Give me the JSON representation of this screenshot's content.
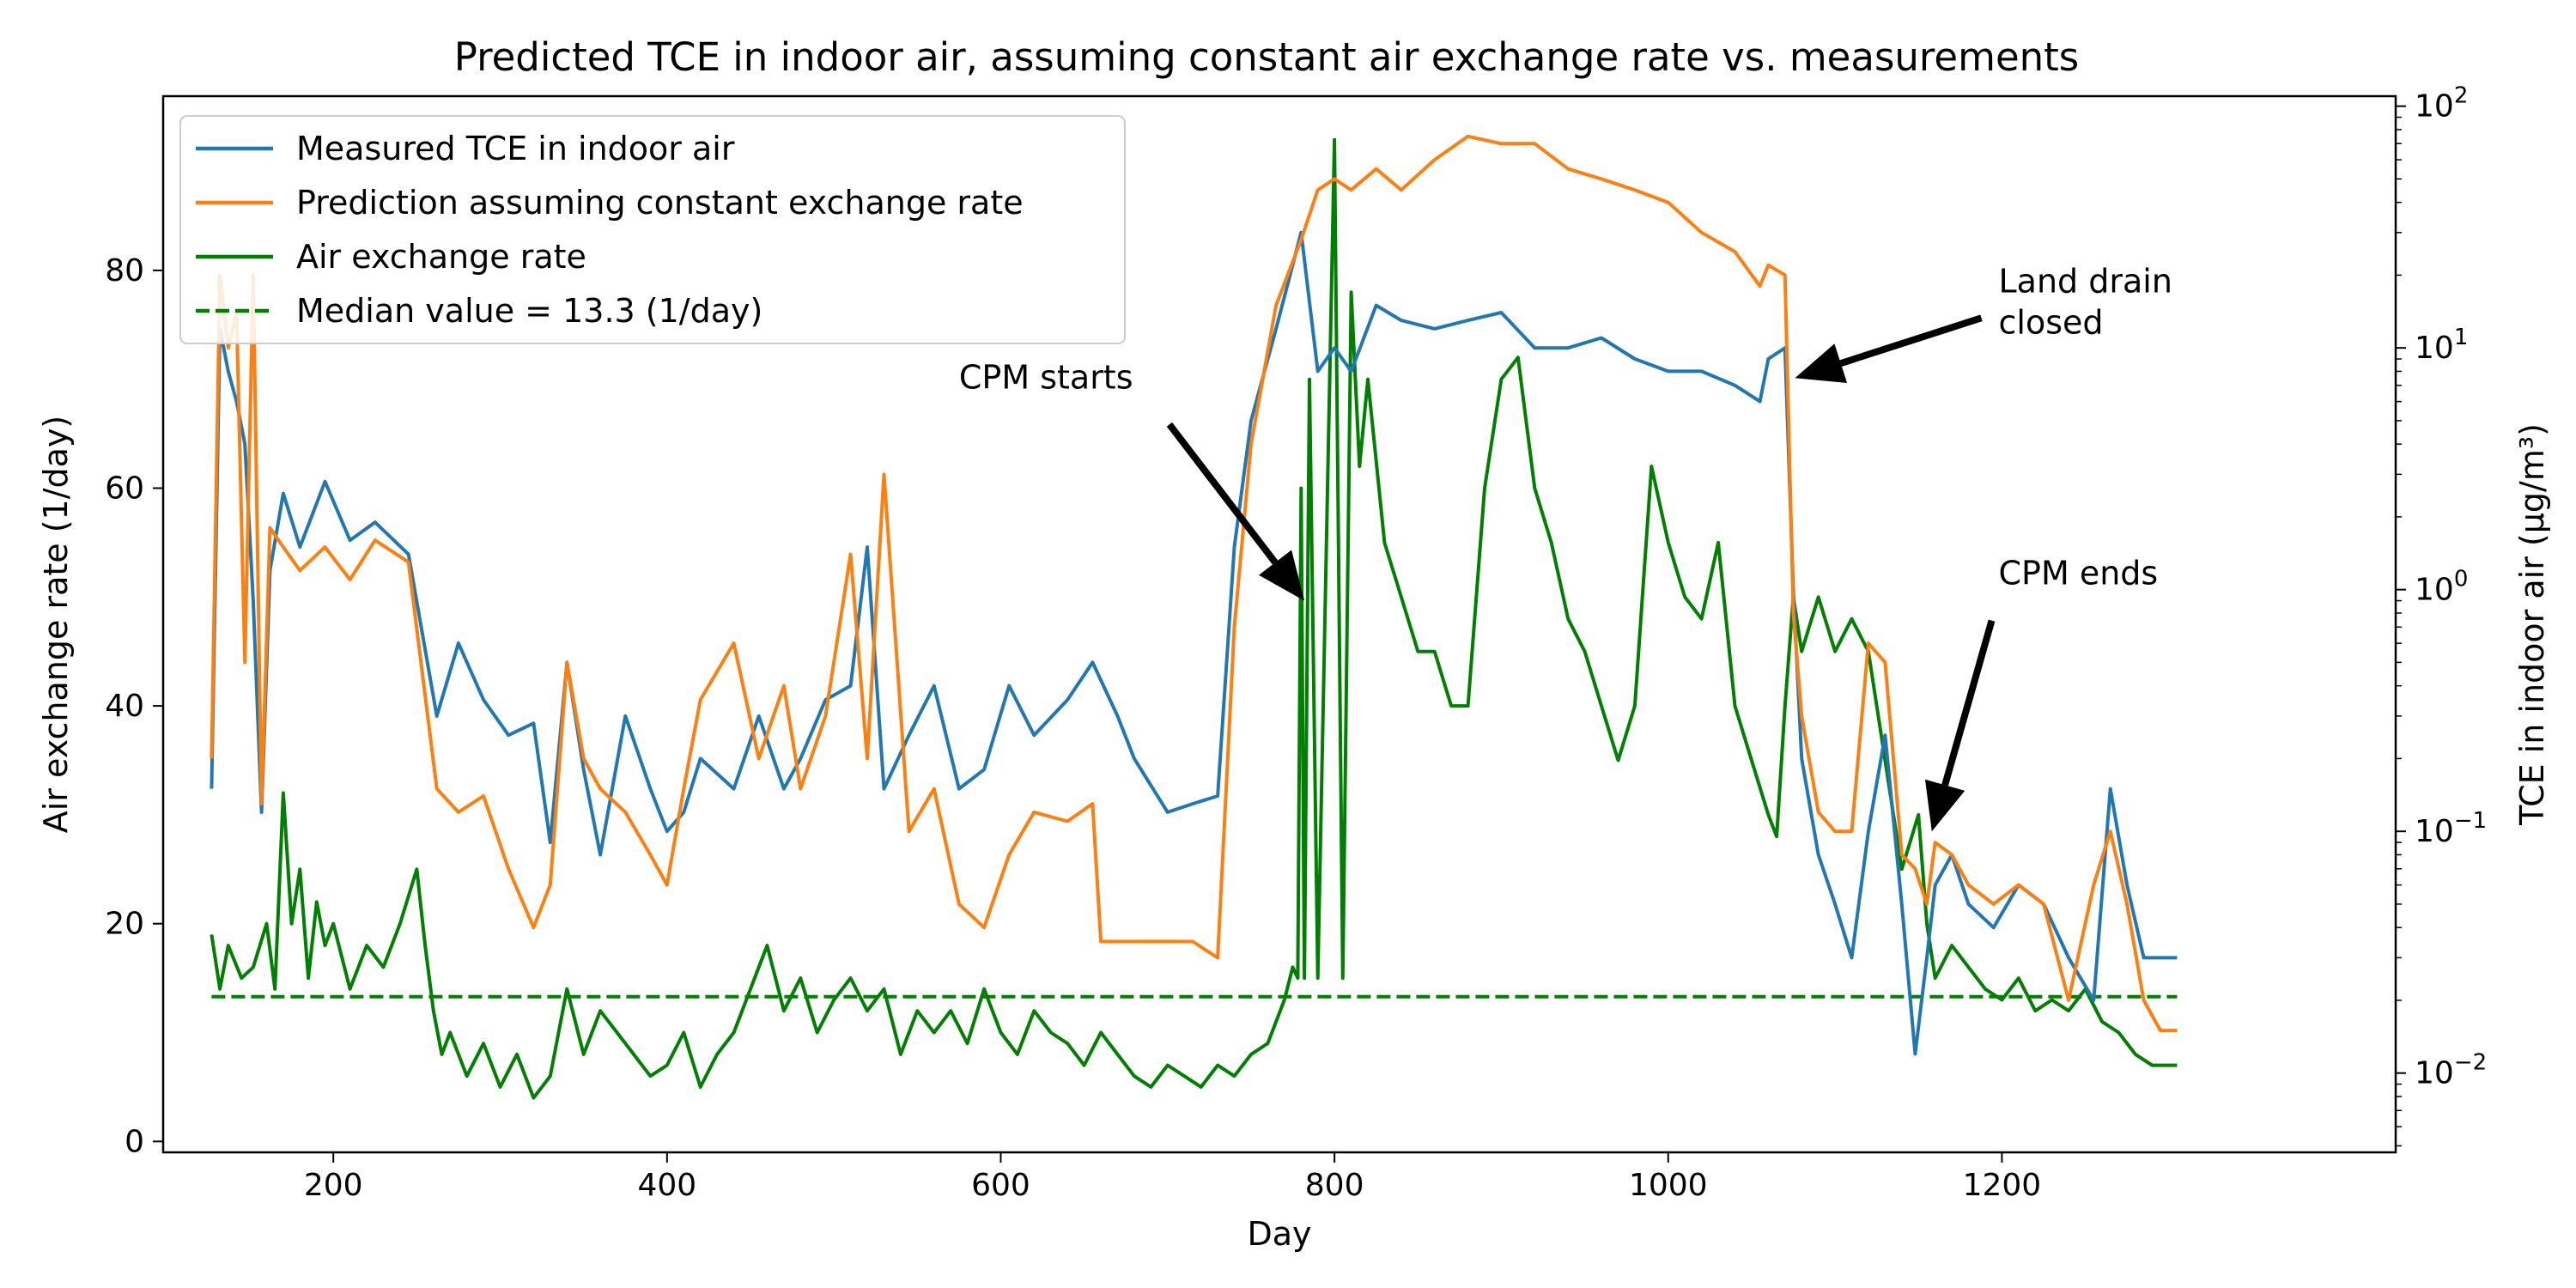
{
  "chart_data": {
    "type": "line",
    "title": "Predicted TCE in indoor air, assuming constant air exchange rate vs. measurements",
    "xlabel": "Day",
    "ylabel_left": "Air exchange rate (1/day)",
    "ylabel_right": "TCE in indoor air (μg/m³)",
    "xlim": [
      98,
      1436
    ],
    "ylim_left": [
      -1,
      96
    ],
    "ylim_right": [
      0.0047,
      110
    ],
    "right_scale": "log",
    "grid": false,
    "legend_position": "top-left",
    "x_ticks": [
      200,
      400,
      600,
      800,
      1000,
      1200
    ],
    "y_left_ticks": [
      0,
      20,
      40,
      60,
      80
    ],
    "y_right_ticks": [
      {
        "value": 0.01,
        "base": "10",
        "exp": "−2"
      },
      {
        "value": 0.1,
        "base": "10",
        "exp": "−1"
      },
      {
        "value": 1,
        "base": "10",
        "exp": "0"
      },
      {
        "value": 10,
        "base": "10",
        "exp": "1"
      },
      {
        "value": 100,
        "base": "10",
        "exp": "2"
      }
    ],
    "series": [
      {
        "name": "Measured TCE in indoor air",
        "axis": "right",
        "color": "#1f77b4",
        "style": "solid",
        "x": [
          127,
          132,
          137,
          142,
          147,
          152,
          157,
          162,
          170,
          180,
          195,
          210,
          225,
          245,
          262,
          275,
          290,
          305,
          320,
          330,
          340,
          350,
          360,
          375,
          390,
          400,
          410,
          420,
          440,
          455,
          470,
          480,
          495,
          510,
          520,
          530,
          545,
          560,
          575,
          590,
          605,
          620,
          640,
          655,
          670,
          680,
          700,
          715,
          730,
          740,
          750,
          765,
          780,
          790,
          800,
          810,
          825,
          840,
          860,
          880,
          900,
          920,
          940,
          960,
          980,
          1000,
          1020,
          1040,
          1055,
          1060,
          1070,
          1075,
          1080,
          1090,
          1100,
          1110,
          1120,
          1130,
          1140,
          1148,
          1155,
          1160,
          1170,
          1180,
          1195,
          1210,
          1225,
          1240,
          1255,
          1265,
          1275,
          1285,
          1295,
          1305
        ],
        "y": [
          0.15,
          12,
          8,
          6,
          4,
          0.9,
          0.12,
          1.2,
          2.5,
          1.5,
          2.8,
          1.6,
          1.9,
          1.4,
          0.3,
          0.6,
          0.35,
          0.25,
          0.28,
          0.09,
          0.5,
          0.18,
          0.08,
          0.3,
          0.15,
          0.1,
          0.12,
          0.2,
          0.15,
          0.3,
          0.15,
          0.2,
          0.35,
          0.4,
          1.5,
          0.15,
          0.25,
          0.4,
          0.15,
          0.18,
          0.4,
          0.25,
          0.35,
          0.5,
          0.3,
          0.2,
          0.12,
          0.13,
          0.14,
          1.5,
          5,
          12,
          30,
          8,
          10,
          8,
          15,
          13,
          12,
          13,
          14,
          10,
          10,
          11,
          9,
          8,
          8,
          7,
          6,
          9,
          10,
          1,
          0.2,
          0.08,
          0.05,
          0.03,
          0.1,
          0.25,
          0.05,
          0.012,
          0.03,
          0.06,
          0.08,
          0.05,
          0.04,
          0.06,
          0.05,
          0.03,
          0.02,
          0.15,
          0.06,
          0.03,
          0.03,
          0.03
        ]
      },
      {
        "name": "Prediction assuming constant exchange rate",
        "axis": "right",
        "color": "#ff7f0e",
        "style": "solid",
        "x": [
          127,
          132,
          137,
          142,
          147,
          152,
          157,
          162,
          170,
          180,
          195,
          210,
          225,
          245,
          262,
          275,
          290,
          305,
          320,
          330,
          340,
          350,
          360,
          375,
          390,
          400,
          410,
          420,
          440,
          455,
          470,
          480,
          495,
          510,
          520,
          530,
          545,
          560,
          575,
          590,
          605,
          620,
          640,
          655,
          660,
          670,
          680,
          700,
          715,
          730,
          740,
          750,
          765,
          780,
          790,
          800,
          810,
          825,
          840,
          860,
          880,
          900,
          920,
          940,
          960,
          980,
          1000,
          1020,
          1040,
          1055,
          1060,
          1070,
          1075,
          1080,
          1090,
          1100,
          1110,
          1120,
          1130,
          1140,
          1148,
          1155,
          1160,
          1170,
          1180,
          1195,
          1210,
          1225,
          1240,
          1255,
          1265,
          1275,
          1285,
          1295,
          1305
        ],
        "y": [
          0.2,
          20,
          10,
          14,
          0.5,
          20,
          0.13,
          1.8,
          1.5,
          1.2,
          1.5,
          1.1,
          1.6,
          1.3,
          0.15,
          0.12,
          0.14,
          0.07,
          0.04,
          0.06,
          0.5,
          0.2,
          0.15,
          0.12,
          0.08,
          0.06,
          0.15,
          0.35,
          0.6,
          0.2,
          0.4,
          0.15,
          0.3,
          1.4,
          0.2,
          3,
          0.1,
          0.15,
          0.05,
          0.04,
          0.08,
          0.12,
          0.11,
          0.13,
          0.035,
          0.035,
          0.035,
          0.035,
          0.035,
          0.03,
          0.7,
          4,
          15,
          28,
          45,
          50,
          45,
          55,
          45,
          60,
          75,
          70,
          70,
          55,
          50,
          45,
          40,
          30,
          25,
          18,
          22,
          20,
          0.8,
          0.3,
          0.12,
          0.1,
          0.1,
          0.6,
          0.5,
          0.08,
          0.07,
          0.05,
          0.09,
          0.08,
          0.06,
          0.05,
          0.06,
          0.05,
          0.02,
          0.06,
          0.1,
          0.05,
          0.02,
          0.015,
          0.015
        ]
      },
      {
        "name": "Air exchange rate",
        "axis": "left",
        "color": "#008000",
        "style": "solid",
        "x": [
          127,
          132,
          137,
          145,
          152,
          160,
          165,
          170,
          175,
          180,
          185,
          190,
          195,
          200,
          210,
          220,
          230,
          240,
          250,
          255,
          260,
          265,
          270,
          280,
          290,
          300,
          310,
          320,
          330,
          340,
          350,
          360,
          370,
          380,
          390,
          400,
          410,
          420,
          430,
          440,
          450,
          460,
          470,
          480,
          490,
          500,
          510,
          520,
          530,
          540,
          550,
          560,
          570,
          580,
          590,
          600,
          610,
          620,
          630,
          640,
          650,
          660,
          670,
          680,
          690,
          700,
          710,
          720,
          730,
          740,
          750,
          760,
          770,
          775,
          778,
          780,
          782,
          785,
          790,
          800,
          805,
          810,
          815,
          820,
          830,
          840,
          850,
          860,
          870,
          880,
          890,
          900,
          910,
          920,
          930,
          940,
          950,
          960,
          970,
          980,
          990,
          1000,
          1010,
          1020,
          1030,
          1040,
          1050,
          1060,
          1065,
          1070,
          1075,
          1080,
          1090,
          1100,
          1110,
          1120,
          1130,
          1140,
          1150,
          1155,
          1160,
          1170,
          1180,
          1190,
          1200,
          1210,
          1220,
          1230,
          1240,
          1250,
          1260,
          1270,
          1280,
          1290,
          1300,
          1305
        ],
        "y": [
          19,
          14,
          18,
          15,
          16,
          20,
          14,
          32,
          20,
          25,
          15,
          22,
          18,
          20,
          14,
          18,
          16,
          20,
          25,
          18,
          12,
          8,
          10,
          6,
          9,
          5,
          8,
          4,
          6,
          14,
          8,
          12,
          10,
          8,
          6,
          7,
          10,
          5,
          8,
          10,
          14,
          18,
          12,
          15,
          10,
          13,
          15,
          12,
          14,
          8,
          12,
          10,
          12,
          9,
          14,
          10,
          8,
          12,
          10,
          9,
          7,
          10,
          8,
          6,
          5,
          7,
          6,
          5,
          7,
          6,
          8,
          9,
          13,
          16,
          15,
          60,
          15,
          70,
          15,
          92,
          15,
          78,
          62,
          70,
          55,
          50,
          45,
          45,
          40,
          40,
          60,
          70,
          72,
          60,
          55,
          48,
          45,
          40,
          35,
          40,
          62,
          55,
          50,
          48,
          55,
          40,
          35,
          30,
          28,
          40,
          50,
          45,
          50,
          45,
          48,
          45,
          35,
          25,
          30,
          20,
          15,
          18,
          16,
          14,
          13,
          15,
          12,
          13,
          12,
          14,
          11,
          10,
          8,
          7,
          7,
          7
        ]
      },
      {
        "name": "Median value = 13.3 (1/day)",
        "axis": "left",
        "color": "#008000",
        "style": "dashed",
        "x": [
          127,
          1305
        ],
        "y": [
          13.3,
          13.3
        ]
      }
    ],
    "annotations": [
      {
        "lines": [
          "CPM starts"
        ],
        "text_x": 575,
        "text_y_right": 6.8,
        "arrow_x": 782,
        "arrow_y_right": 0.9
      },
      {
        "lines": [
          "Land drain",
          "closed"
        ],
        "text_x": 1198,
        "text_y_right": 17,
        "arrow_x": 1076,
        "arrow_y_right": 7.5
      },
      {
        "lines": [
          "CPM ends"
        ],
        "text_x": 1198,
        "text_y_right": 1.05,
        "arrow_x": 1158,
        "arrow_y_right": 0.1
      }
    ]
  }
}
